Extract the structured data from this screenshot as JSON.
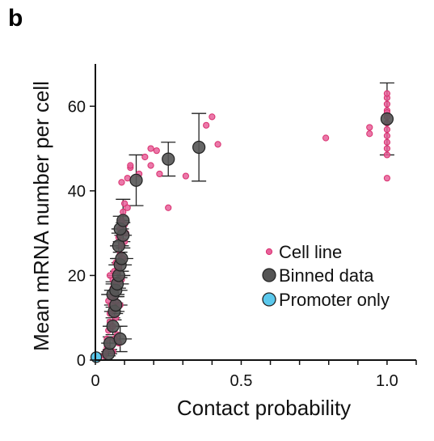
{
  "panel_label": "b",
  "colors": {
    "cell_line": "#d9306f",
    "cell_line_fill": "#e8609a",
    "binned": "#555555",
    "promoter": "#5bc8ec",
    "axis": "#111111"
  },
  "chart_data": {
    "type": "scatter",
    "title": "",
    "xlabel": "Contact probability",
    "ylabel": "Mean mRNA number per cell",
    "xlim": [
      0,
      1.1
    ],
    "ylim": [
      0,
      70
    ],
    "xticks": [
      0,
      0.5,
      1.0
    ],
    "xtick_labels": [
      "0",
      "0.5",
      "1.0"
    ],
    "yticks": [
      0,
      20,
      40,
      60
    ],
    "ytick_labels": [
      "0",
      "20",
      "40",
      "60"
    ],
    "legend": {
      "placement": "center-right",
      "entries": [
        "Cell line",
        "Binned data",
        "Promoter only"
      ]
    },
    "series": [
      {
        "name": "Cell line",
        "marker": "small-circle",
        "points": [
          [
            0.03,
            1
          ],
          [
            0.035,
            2
          ],
          [
            0.04,
            3
          ],
          [
            0.04,
            5
          ],
          [
            0.045,
            7
          ],
          [
            0.05,
            9
          ],
          [
            0.05,
            11
          ],
          [
            0.055,
            13
          ],
          [
            0.055,
            15
          ],
          [
            0.06,
            17
          ],
          [
            0.06,
            19
          ],
          [
            0.065,
            21
          ],
          [
            0.07,
            23
          ],
          [
            0.05,
            20
          ],
          [
            0.045,
            14
          ],
          [
            0.06,
            8
          ],
          [
            0.065,
            12
          ],
          [
            0.07,
            16
          ],
          [
            0.075,
            18
          ],
          [
            0.08,
            22
          ],
          [
            0.085,
            25
          ],
          [
            0.09,
            27
          ],
          [
            0.08,
            29
          ],
          [
            0.085,
            31
          ],
          [
            0.09,
            33
          ],
          [
            0.095,
            35
          ],
          [
            0.1,
            37
          ],
          [
            0.07,
            10
          ],
          [
            0.075,
            6
          ],
          [
            0.08,
            4
          ],
          [
            0.085,
            13
          ],
          [
            0.09,
            19
          ],
          [
            0.095,
            24
          ],
          [
            0.1,
            28
          ],
          [
            0.105,
            30
          ],
          [
            0.06,
            2
          ],
          [
            0.065,
            5
          ],
          [
            0.07,
            14
          ],
          [
            0.075,
            21
          ],
          [
            0.1,
            32
          ],
          [
            0.11,
            36
          ],
          [
            0.09,
            42
          ],
          [
            0.11,
            43
          ],
          [
            0.12,
            45.5
          ],
          [
            0.12,
            46
          ],
          [
            0.15,
            44
          ],
          [
            0.17,
            48
          ],
          [
            0.19,
            46
          ],
          [
            0.19,
            50
          ],
          [
            0.21,
            49.5
          ],
          [
            0.22,
            44
          ],
          [
            0.25,
            36
          ],
          [
            0.31,
            43.5
          ],
          [
            0.38,
            55.5
          ],
          [
            0.4,
            57.5
          ],
          [
            0.42,
            51
          ],
          [
            0.79,
            52.5
          ],
          [
            0.94,
            55
          ],
          [
            0.94,
            53.5
          ],
          [
            1.0,
            43
          ],
          [
            1.0,
            48.5
          ],
          [
            1.0,
            50
          ],
          [
            1.0,
            51.5
          ],
          [
            1.0,
            53
          ],
          [
            1.0,
            54.5
          ],
          [
            1.0,
            56
          ],
          [
            1.0,
            57.5
          ],
          [
            1.0,
            59
          ],
          [
            1.0,
            60.5
          ],
          [
            1.0,
            62
          ],
          [
            1.0,
            63
          ],
          [
            1.0,
            58.5
          ]
        ]
      },
      {
        "name": "Binned data",
        "marker": "large-circle",
        "points": [
          {
            "x": 0.045,
            "y": 1.5,
            "xerr": 0.03,
            "yerr": 0.5
          },
          {
            "x": 0.05,
            "y": 4,
            "xerr": 0.03,
            "yerr": 1.5
          },
          {
            "x": 0.06,
            "y": 8,
            "xerr": 0.035,
            "yerr": 2
          },
          {
            "x": 0.065,
            "y": 11.5,
            "xerr": 0.035,
            "yerr": 2
          },
          {
            "x": 0.07,
            "y": 13,
            "xerr": 0.04,
            "yerr": 2
          },
          {
            "x": 0.06,
            "y": 15.5,
            "xerr": 0.04,
            "yerr": 3
          },
          {
            "x": 0.07,
            "y": 16.5,
            "xerr": 0.04,
            "yerr": 3
          },
          {
            "x": 0.075,
            "y": 18,
            "xerr": 0.04,
            "yerr": 3
          },
          {
            "x": 0.08,
            "y": 20,
            "xerr": 0.04,
            "yerr": 3
          },
          {
            "x": 0.085,
            "y": 22.5,
            "xerr": 0.04,
            "yerr": 3
          },
          {
            "x": 0.09,
            "y": 24,
            "xerr": 0.04,
            "yerr": 3
          },
          {
            "x": 0.085,
            "y": 5,
            "xerr": 0.04,
            "yerr": 3
          },
          {
            "x": 0.08,
            "y": 27,
            "xerr": 0.03,
            "yerr": 3
          },
          {
            "x": 0.095,
            "y": 29.5,
            "xerr": 0.03,
            "yerr": 3
          },
          {
            "x": 0.085,
            "y": 31,
            "xerr": 0.03,
            "yerr": 3
          },
          {
            "x": 0.095,
            "y": 33,
            "xerr": 0.02,
            "yerr": 5
          },
          {
            "x": 0.14,
            "y": 42.5,
            "xerr": 0.0,
            "yerr": 6
          },
          {
            "x": 0.25,
            "y": 47.5,
            "xerr": 0.0,
            "yerr": 4
          },
          {
            "x": 0.355,
            "y": 50.3,
            "xerr": 0.0,
            "yerr": 8
          },
          {
            "x": 1.0,
            "y": 57,
            "xerr": 0.0,
            "yerr": 8.5
          }
        ]
      },
      {
        "name": "Promoter only",
        "marker": "large-circle",
        "points": [
          [
            0.003,
            0.7
          ]
        ]
      }
    ]
  }
}
